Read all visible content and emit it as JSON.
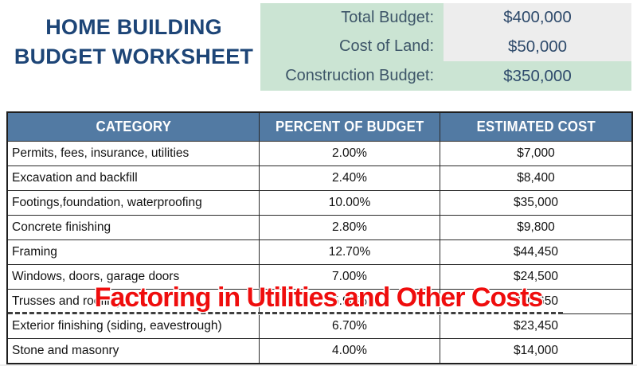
{
  "title": {
    "line1": "HOME BUILDING",
    "line2": "BUDGET WORKSHEET"
  },
  "summary": {
    "rows": [
      {
        "label": "Total Budget:",
        "value": "$400,000"
      },
      {
        "label": "Cost of Land:",
        "value": "$50,000"
      },
      {
        "label": "Construction Budget:",
        "value": "$350,000"
      }
    ]
  },
  "table": {
    "headers": [
      "CATEGORY",
      "PERCENT OF BUDGET",
      "ESTIMATED COST"
    ],
    "rows": [
      {
        "category": "Permits, fees, insurance, utilities",
        "percent": "2.00%",
        "cost": "$7,000"
      },
      {
        "category": "Excavation and backfill",
        "percent": "2.40%",
        "cost": "$8,400"
      },
      {
        "category": "Footings,foundation, waterproofing",
        "percent": "10.00%",
        "cost": "$35,000"
      },
      {
        "category": "Concrete finishing",
        "percent": "2.80%",
        "cost": "$9,800"
      },
      {
        "category": "Framing",
        "percent": "12.70%",
        "cost": "$44,450"
      },
      {
        "category": "Windows, doors, garage doors",
        "percent": "7.00%",
        "cost": "$24,500"
      },
      {
        "category": "Trusses and roofing",
        "percent": "5.90%",
        "cost": "$20,650"
      },
      {
        "category": "Exterior finishing (siding, eavestrough)",
        "percent": "6.70%",
        "cost": "$23,450"
      },
      {
        "category": "Stone and masonry",
        "percent": "4.00%",
        "cost": "$14,000"
      }
    ]
  },
  "caption": {
    "text": "Factoring in Utilities and Other Costs"
  },
  "colors": {
    "title_navy": "#1d4577",
    "summary_green": "#cbe4d3",
    "summary_gray": "#ededed",
    "summary_label_color": "#3d5568",
    "summary_value_color": "#2e4a6b",
    "header_bg": "#527aa3",
    "grid_line": "#2a2a2a",
    "grid_border": "#1f1f1f",
    "caption_red": "#ef0d0d"
  }
}
